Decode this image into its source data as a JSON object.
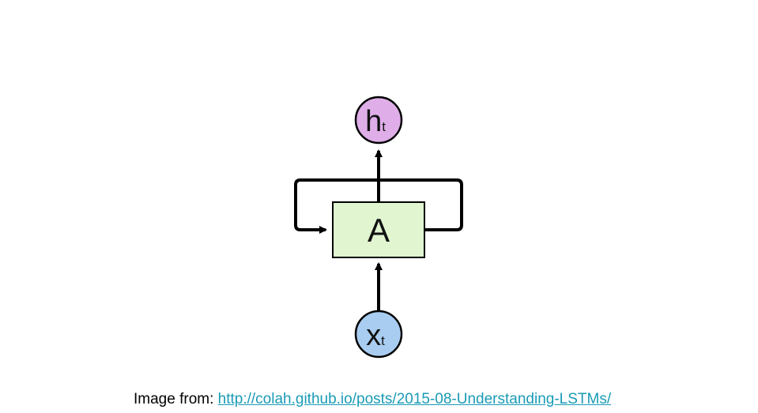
{
  "diagram": {
    "output_node": {
      "main": "h",
      "sub": "t",
      "color": "#dfaee8"
    },
    "cell": {
      "label": "A",
      "color": "#e0f5d0"
    },
    "input_node": {
      "main": "x",
      "sub": "t",
      "color": "#a9cdf0"
    }
  },
  "caption": {
    "prefix": "Image from:",
    "link_text": "http://colah.github.io/posts/2015-08-Understanding-LSTMs/",
    "link_color": "#1a9bb5"
  }
}
